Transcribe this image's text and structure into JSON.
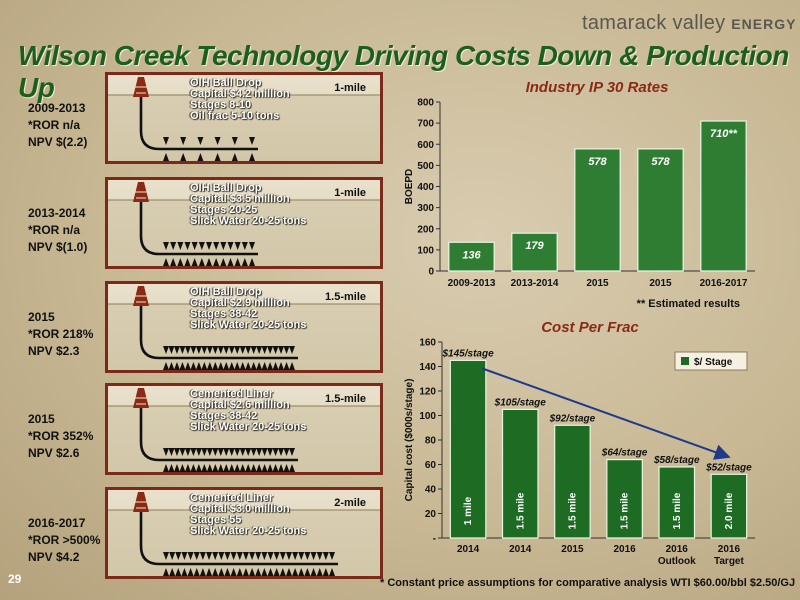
{
  "header": {
    "title": "Wilson Creek Technology Driving Costs Down & Production Up",
    "logo_main": "tamarack valley",
    "logo_sub": "ENERGY",
    "page_number": "29"
  },
  "scenarios": [
    {
      "period_lines": [
        "2009-2013",
        "*ROR n/a",
        "NPV $(2.2)"
      ],
      "length": "1-mile",
      "details": [
        "OIH Ball Drop",
        "Capital $4.2 million",
        "Stages 8-10",
        "Oil frac 5-10 tons"
      ],
      "stage_count": 6
    },
    {
      "period_lines": [
        "2013-2014",
        "*ROR n/a",
        "NPV $(1.0)"
      ],
      "length": "1-mile",
      "details": [
        "OIH Ball Drop",
        "Capital $3.5 million",
        "Stages 20-25",
        "Slick Water 20-25 tons"
      ],
      "stage_count": 13
    },
    {
      "period_lines": [
        "2015",
        "*ROR 218%",
        "NPV $2.3"
      ],
      "length": "1.5-mile",
      "details": [
        "OIH Ball Drop",
        "Capital $2.9 million",
        "Stages 38-42",
        "Slick Water 20-25 tons"
      ],
      "stage_count": 24
    },
    {
      "period_lines": [
        "2015",
        "*ROR 352%",
        "NPV $2.6"
      ],
      "length": "1.5-mile",
      "details": [
        "Cemented Liner",
        "Capital $2.6 million",
        "Stages 38-42",
        "Slick Water 20-25 tons"
      ],
      "stage_count": 24
    },
    {
      "period_lines": [
        "2016-2017",
        "*ROR >500%",
        "NPV $4.2"
      ],
      "length": "2-mile",
      "details": [
        "Cemented Liner",
        "Capital $3.0 million",
        "Stages 55",
        "Slick Water 20-25 tons"
      ],
      "stage_count": 28
    }
  ],
  "chart_data": [
    {
      "type": "bar",
      "title": "Industry IP 30 Rates",
      "ylabel": "BOEPD",
      "categories": [
        "2009-2013",
        "2013-2014",
        "2015",
        "2015",
        "2016-2017"
      ],
      "values": [
        136,
        179,
        578,
        578,
        710
      ],
      "data_labels": [
        "136",
        "179",
        "578",
        "578",
        "710**"
      ],
      "ylim": [
        0,
        800
      ],
      "yticks": [
        0,
        100,
        200,
        300,
        400,
        500,
        600,
        700,
        800
      ],
      "note": "** Estimated results",
      "colors": {
        "bar": "#2e7d32",
        "label": "#ffffff"
      }
    },
    {
      "type": "bar",
      "title": "Cost Per Frac",
      "ylabel": "Capital cost ($000s/stage)",
      "categories": [
        [
          "2014"
        ],
        [
          "2014"
        ],
        [
          "2015"
        ],
        [
          "2016"
        ],
        [
          "2016",
          "Outlook"
        ],
        [
          "2016",
          "Target"
        ]
      ],
      "values": [
        145,
        105,
        92,
        64,
        58,
        52
      ],
      "data_labels": [
        "$145/stage",
        "$105/stage",
        "$92/stage",
        "$64/stage",
        "$58/stage",
        "$52/stage"
      ],
      "bar_inner_labels": [
        "1 mile",
        "1.5 mile",
        "1.5 mile",
        "1.5 mile",
        "1.5 mile",
        "2.0 mile"
      ],
      "ylim": [
        0,
        160
      ],
      "yticks": [
        0,
        20,
        40,
        60,
        80,
        100,
        120,
        140,
        160
      ],
      "ytick_labels": [
        "-",
        "20",
        "40",
        "60",
        "80",
        "100",
        "120",
        "140",
        "160"
      ],
      "legend": "$/ Stage",
      "legend_position": "top-right",
      "trend_arrow": true,
      "colors": {
        "bar": "#1e6b24",
        "arrow": "#1f3a8a"
      }
    }
  ],
  "footnote": "* Constant price assumptions for comparative analysis WTI $60.00/bbl $2.50/GJ"
}
